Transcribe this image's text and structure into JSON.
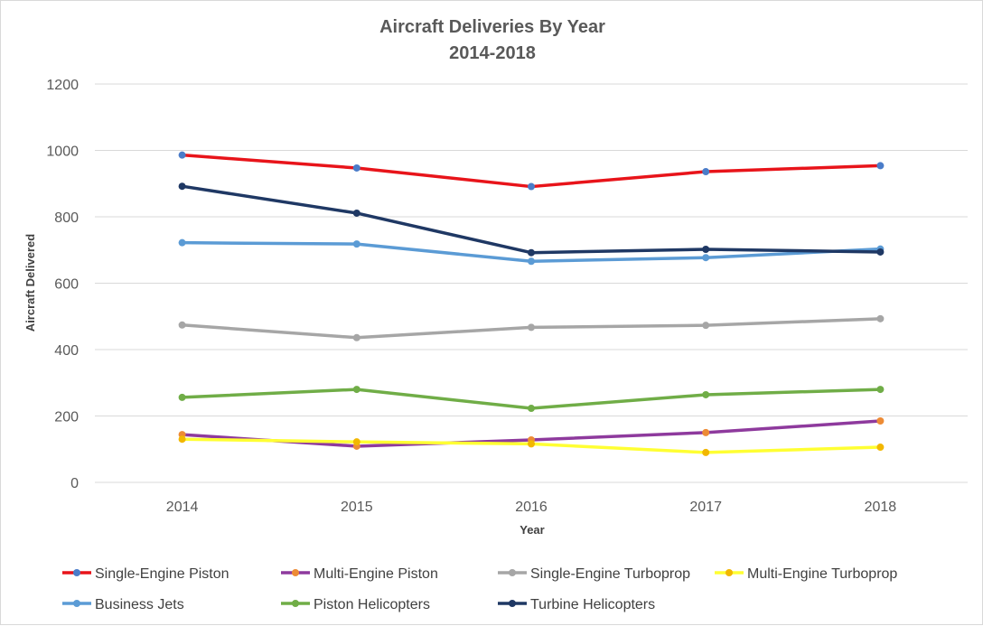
{
  "chart_data": {
    "type": "line",
    "title": "Aircraft Deliveries By Year",
    "subtitle": "2014-2018",
    "xlabel": "Year",
    "ylabel": "Aircraft Delivered",
    "ylim": [
      0,
      1200
    ],
    "yticks": [
      "0",
      "200",
      "400",
      "600",
      "800",
      "1000",
      "1200"
    ],
    "grid": true,
    "legend_position": "bottom",
    "categories": [
      "2014",
      "2015",
      "2016",
      "2017",
      "2018"
    ],
    "series": [
      {
        "name": "Single-Engine Piston",
        "color": "#e8141a",
        "marker_color": "#4a7cc9",
        "values": [
          986,
          947,
          891,
          936,
          954
        ]
      },
      {
        "name": "Multi-Engine Piston",
        "color": "#8e3a9d",
        "marker_color": "#ed8b35",
        "values": [
          144,
          109,
          128,
          150,
          185
        ]
      },
      {
        "name": "Single-Engine Turboprop",
        "color": "#a6a6a6",
        "marker_color": "#a6a6a6",
        "values": [
          474,
          436,
          467,
          473,
          493
        ]
      },
      {
        "name": "Multi-Engine Turboprop",
        "color": "#ffff33",
        "marker_color": "#f2b700",
        "values": [
          130,
          122,
          116,
          90,
          106
        ]
      },
      {
        "name": "Business Jets",
        "color": "#5b9bd5",
        "marker_color": "#5b9bd5",
        "values": [
          722,
          718,
          666,
          677,
          703
        ]
      },
      {
        "name": "Piston Helicopters",
        "color": "#70ad47",
        "marker_color": "#70ad47",
        "values": [
          256,
          280,
          223,
          264,
          280
        ]
      },
      {
        "name": "Turbine Helicopters",
        "color": "#1f3864",
        "marker_color": "#1f3864",
        "values": [
          892,
          811,
          692,
          702,
          694
        ]
      }
    ]
  }
}
